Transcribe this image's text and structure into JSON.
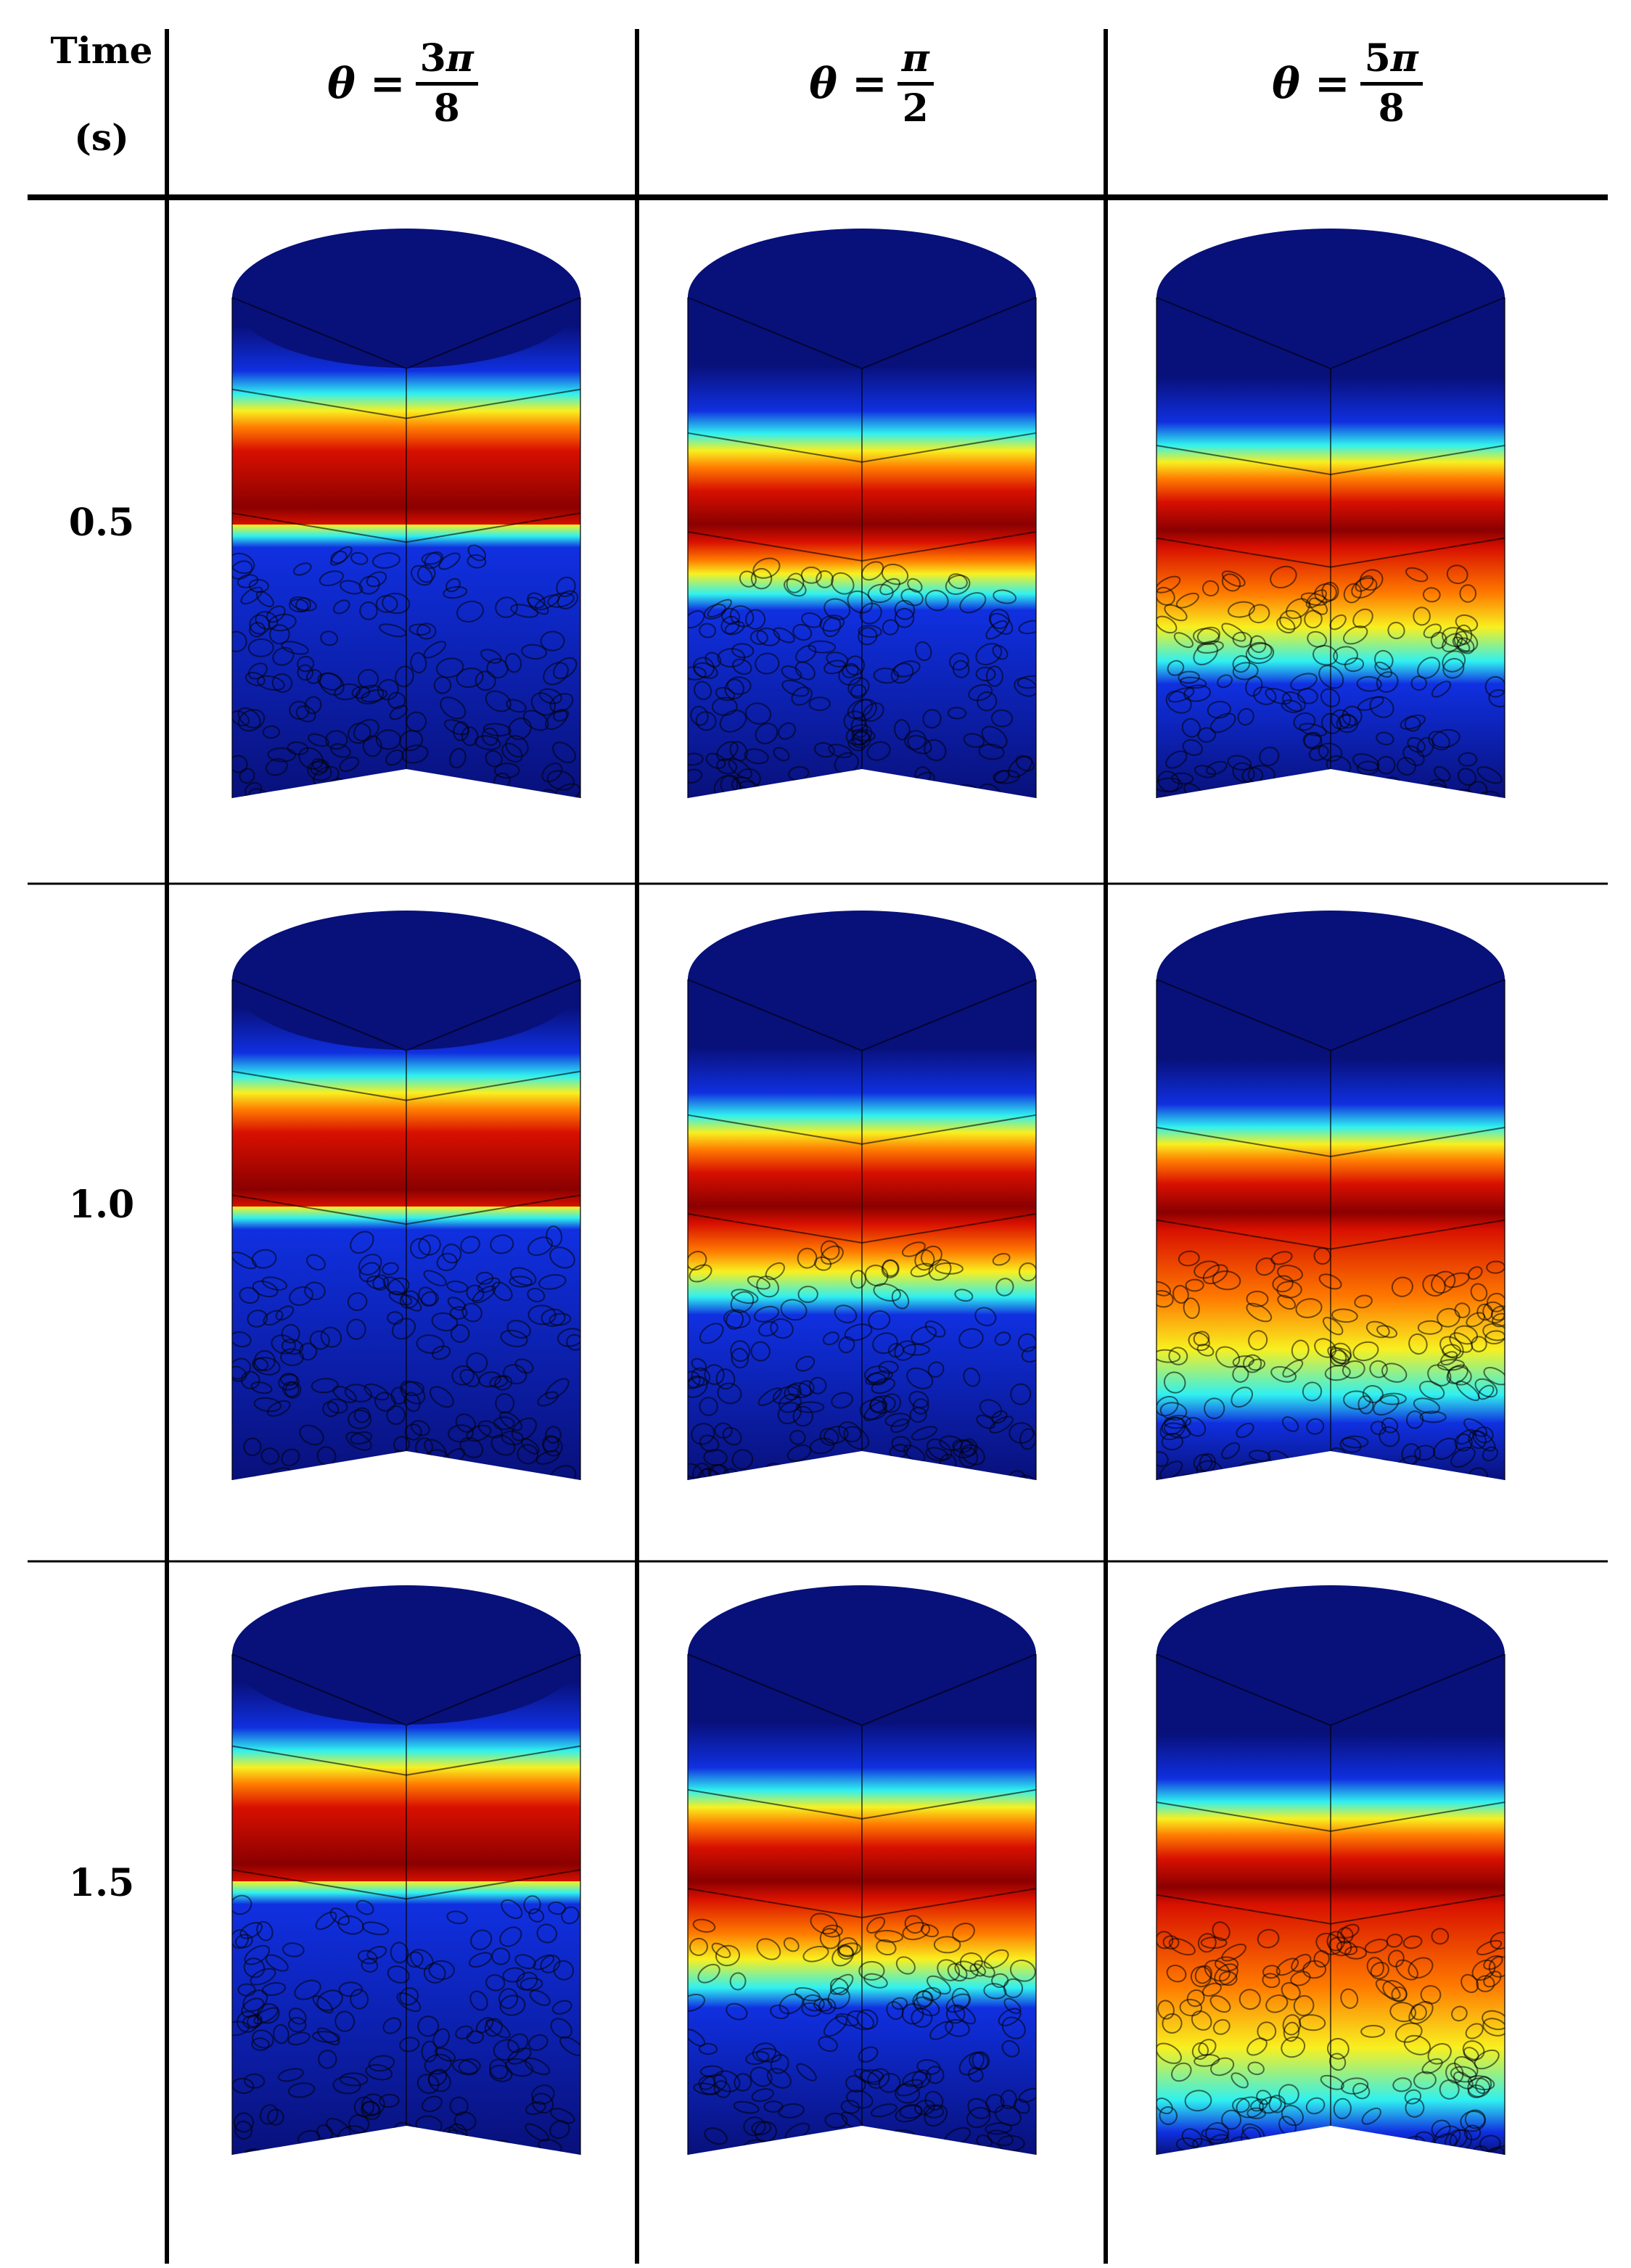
{
  "table": {
    "time_header_line1": "Time",
    "time_header_line2": "(s)",
    "columns": [
      {
        "id": "3pi8",
        "prefix": "θ =",
        "num_coeff": "3",
        "num_sym": "π",
        "den": "8"
      },
      {
        "id": "pi2",
        "prefix": "θ =",
        "num_coeff": "",
        "num_sym": "π",
        "den": "2"
      },
      {
        "id": "5pi8",
        "prefix": "θ =",
        "num_coeff": "5",
        "num_sym": "π",
        "den": "8"
      }
    ],
    "rows": [
      {
        "time": "0.5"
      },
      {
        "time": "1.0"
      },
      {
        "time": "1.5"
      }
    ]
  },
  "colors": {
    "deep_blue": "#08107a",
    "blue": "#1030e0",
    "cyan": "#30f0f0",
    "yellow": "#f8f020",
    "orange": "#ff7a00",
    "red": "#d81000",
    "dark_red": "#8a0000"
  }
}
